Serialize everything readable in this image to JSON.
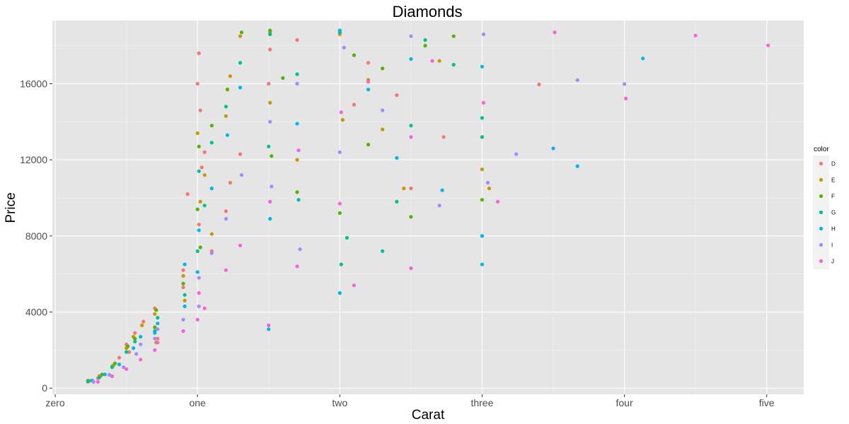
{
  "chart_data": {
    "type": "scatter",
    "title": "Diamonds",
    "xlabel": "Carat",
    "ylabel": "Price",
    "xlim": [
      -0.02,
      5.26
    ],
    "ylim": [
      -326,
      19324
    ],
    "x_ticks": [
      {
        "value": 0,
        "label": "zero"
      },
      {
        "value": 1,
        "label": "one"
      },
      {
        "value": 2,
        "label": "two"
      },
      {
        "value": 3,
        "label": "three"
      },
      {
        "value": 4,
        "label": "four"
      },
      {
        "value": 5,
        "label": "five"
      }
    ],
    "y_ticks": [
      {
        "value": 0,
        "label": "0"
      },
      {
        "value": 4000,
        "label": "4000"
      },
      {
        "value": 8000,
        "label": "8000"
      },
      {
        "value": 12000,
        "label": "12000"
      },
      {
        "value": 16000,
        "label": "16000"
      }
    ],
    "grid": true,
    "background": "#e5e5e5",
    "legend": {
      "title": "color",
      "position": "right"
    },
    "series": [
      {
        "name": "D",
        "color": "#F8766D",
        "points": [
          [
            0.23,
            340
          ],
          [
            0.3,
            520
          ],
          [
            0.31,
            640
          ],
          [
            0.4,
            1150
          ],
          [
            0.45,
            1600
          ],
          [
            0.5,
            2300
          ],
          [
            0.52,
            1900
          ],
          [
            0.56,
            2900
          ],
          [
            0.62,
            3500
          ],
          [
            0.7,
            4200
          ],
          [
            0.72,
            2600
          ],
          [
            0.9,
            6200
          ],
          [
            0.9,
            5300
          ],
          [
            0.93,
            10200
          ],
          [
            1.0,
            16000
          ],
          [
            1.01,
            17600
          ],
          [
            1.01,
            8600
          ],
          [
            1.02,
            14600
          ],
          [
            1.03,
            11600
          ],
          [
            1.05,
            12400
          ],
          [
            1.1,
            7200
          ],
          [
            1.2,
            9300
          ],
          [
            1.23,
            10800
          ],
          [
            1.3,
            12300
          ],
          [
            1.5,
            16000
          ],
          [
            1.51,
            17800
          ],
          [
            1.7,
            18300
          ],
          [
            2.0,
            18700
          ],
          [
            2.1,
            14900
          ],
          [
            2.2,
            17100
          ],
          [
            2.4,
            15400
          ],
          [
            2.5,
            10500
          ],
          [
            2.73,
            13200
          ],
          [
            3.4,
            15964
          ]
        ]
      },
      {
        "name": "E",
        "color": "#C49A00",
        "points": [
          [
            0.24,
            380
          ],
          [
            0.32,
            650
          ],
          [
            0.41,
            1200
          ],
          [
            0.5,
            2100
          ],
          [
            0.55,
            2700
          ],
          [
            0.61,
            3300
          ],
          [
            0.7,
            3900
          ],
          [
            0.71,
            2400
          ],
          [
            0.9,
            5900
          ],
          [
            0.91,
            4600
          ],
          [
            1.0,
            13400
          ],
          [
            1.02,
            9800
          ],
          [
            1.05,
            11200
          ],
          [
            1.1,
            8100
          ],
          [
            1.2,
            14300
          ],
          [
            1.23,
            16400
          ],
          [
            1.3,
            18500
          ],
          [
            1.51,
            18700
          ],
          [
            1.51,
            15000
          ],
          [
            1.7,
            12000
          ],
          [
            2.0,
            18600
          ],
          [
            2.02,
            14100
          ],
          [
            2.2,
            16200
          ],
          [
            2.3,
            13600
          ],
          [
            2.45,
            10500
          ],
          [
            2.7,
            17200
          ],
          [
            3.0,
            11500
          ],
          [
            3.05,
            10500
          ]
        ]
      },
      {
        "name": "F",
        "color": "#53B400",
        "points": [
          [
            0.23,
            390
          ],
          [
            0.33,
            720
          ],
          [
            0.42,
            1300
          ],
          [
            0.51,
            2200
          ],
          [
            0.56,
            2600
          ],
          [
            0.7,
            3200
          ],
          [
            0.71,
            4100
          ],
          [
            0.9,
            5500
          ],
          [
            1.0,
            9400
          ],
          [
            1.01,
            12700
          ],
          [
            1.02,
            7400
          ],
          [
            1.1,
            13800
          ],
          [
            1.21,
            15700
          ],
          [
            1.31,
            18700
          ],
          [
            1.51,
            18800
          ],
          [
            1.52,
            12200
          ],
          [
            1.6,
            16300
          ],
          [
            1.7,
            10300
          ],
          [
            2.0,
            18800
          ],
          [
            2.0,
            9200
          ],
          [
            2.1,
            17500
          ],
          [
            2.2,
            12800
          ],
          [
            2.3,
            16800
          ],
          [
            2.5,
            9000
          ],
          [
            2.6,
            18000
          ],
          [
            2.8,
            18500
          ],
          [
            3.0,
            9900
          ]
        ]
      },
      {
        "name": "G",
        "color": "#00C094",
        "points": [
          [
            0.23,
            360
          ],
          [
            0.31,
            560
          ],
          [
            0.4,
            1100
          ],
          [
            0.5,
            1900
          ],
          [
            0.56,
            2450
          ],
          [
            0.7,
            3000
          ],
          [
            0.72,
            3700
          ],
          [
            0.91,
            4900
          ],
          [
            1.0,
            7200
          ],
          [
            1.01,
            11400
          ],
          [
            1.05,
            9600
          ],
          [
            1.1,
            12900
          ],
          [
            1.2,
            14800
          ],
          [
            1.3,
            17100
          ],
          [
            1.5,
            12700
          ],
          [
            1.51,
            18600
          ],
          [
            1.7,
            16500
          ],
          [
            1.71,
            9900
          ],
          [
            2.0,
            18700
          ],
          [
            2.01,
            6500
          ],
          [
            2.05,
            7900
          ],
          [
            2.3,
            7200
          ],
          [
            2.4,
            9800
          ],
          [
            2.5,
            13800
          ],
          [
            2.6,
            18300
          ],
          [
            2.8,
            17000
          ],
          [
            3.0,
            8000
          ],
          [
            3.0,
            13200
          ],
          [
            3.0,
            14200
          ]
        ]
      },
      {
        "name": "H",
        "color": "#00B6EB",
        "points": [
          [
            0.26,
            400
          ],
          [
            0.35,
            720
          ],
          [
            0.45,
            1250
          ],
          [
            0.55,
            2100
          ],
          [
            0.6,
            2700
          ],
          [
            0.7,
            2900
          ],
          [
            0.72,
            3400
          ],
          [
            0.91,
            4300
          ],
          [
            0.91,
            6500
          ],
          [
            1.0,
            6100
          ],
          [
            1.01,
            8300
          ],
          [
            1.1,
            10500
          ],
          [
            1.21,
            13300
          ],
          [
            1.3,
            15800
          ],
          [
            1.5,
            3100
          ],
          [
            1.51,
            8900
          ],
          [
            1.7,
            13900
          ],
          [
            2.0,
            18800
          ],
          [
            2.0,
            5000
          ],
          [
            2.2,
            15700
          ],
          [
            2.4,
            12100
          ],
          [
            2.5,
            17300
          ],
          [
            2.72,
            10400
          ],
          [
            3.0,
            6500
          ],
          [
            3.0,
            8000
          ],
          [
            3.0,
            16900
          ],
          [
            3.5,
            12600
          ],
          [
            3.67,
            11668
          ],
          [
            4.13,
            17329
          ]
        ]
      },
      {
        "name": "I",
        "color": "#A58AFF",
        "points": [
          [
            0.27,
            330
          ],
          [
            0.38,
            700
          ],
          [
            0.48,
            1100
          ],
          [
            0.57,
            1800
          ],
          [
            0.6,
            2300
          ],
          [
            0.7,
            2600
          ],
          [
            0.72,
            3100
          ],
          [
            0.9,
            3600
          ],
          [
            1.01,
            4300
          ],
          [
            1.01,
            5800
          ],
          [
            1.1,
            7100
          ],
          [
            1.2,
            8900
          ],
          [
            1.31,
            11200
          ],
          [
            1.51,
            14000
          ],
          [
            1.52,
            10600
          ],
          [
            1.7,
            16000
          ],
          [
            1.72,
            7300
          ],
          [
            2.0,
            12400
          ],
          [
            2.03,
            17900
          ],
          [
            2.3,
            14600
          ],
          [
            2.5,
            18500
          ],
          [
            2.7,
            9600
          ],
          [
            3.01,
            18600
          ],
          [
            3.04,
            10800
          ],
          [
            3.24,
            12300
          ],
          [
            3.67,
            16193
          ],
          [
            4.0,
            15984
          ]
        ]
      },
      {
        "name": "J",
        "color": "#FB61D7",
        "points": [
          [
            0.3,
            330
          ],
          [
            0.4,
            620
          ],
          [
            0.5,
            1000
          ],
          [
            0.6,
            1500
          ],
          [
            0.7,
            2000
          ],
          [
            0.72,
            2400
          ],
          [
            0.9,
            3000
          ],
          [
            1.0,
            3600
          ],
          [
            1.01,
            5000
          ],
          [
            1.05,
            4200
          ],
          [
            1.2,
            6200
          ],
          [
            1.3,
            7500
          ],
          [
            1.5,
            3300
          ],
          [
            1.51,
            9800
          ],
          [
            1.7,
            6400
          ],
          [
            1.71,
            12500
          ],
          [
            2.0,
            9700
          ],
          [
            2.01,
            14500
          ],
          [
            2.1,
            5400
          ],
          [
            2.2,
            16100
          ],
          [
            2.5,
            6300
          ],
          [
            2.5,
            13200
          ],
          [
            2.65,
            17200
          ],
          [
            3.01,
            15000
          ],
          [
            3.11,
            9800
          ],
          [
            3.51,
            18701
          ],
          [
            4.01,
            15223
          ],
          [
            4.5,
            18531
          ],
          [
            5.01,
            18018
          ]
        ]
      }
    ]
  }
}
